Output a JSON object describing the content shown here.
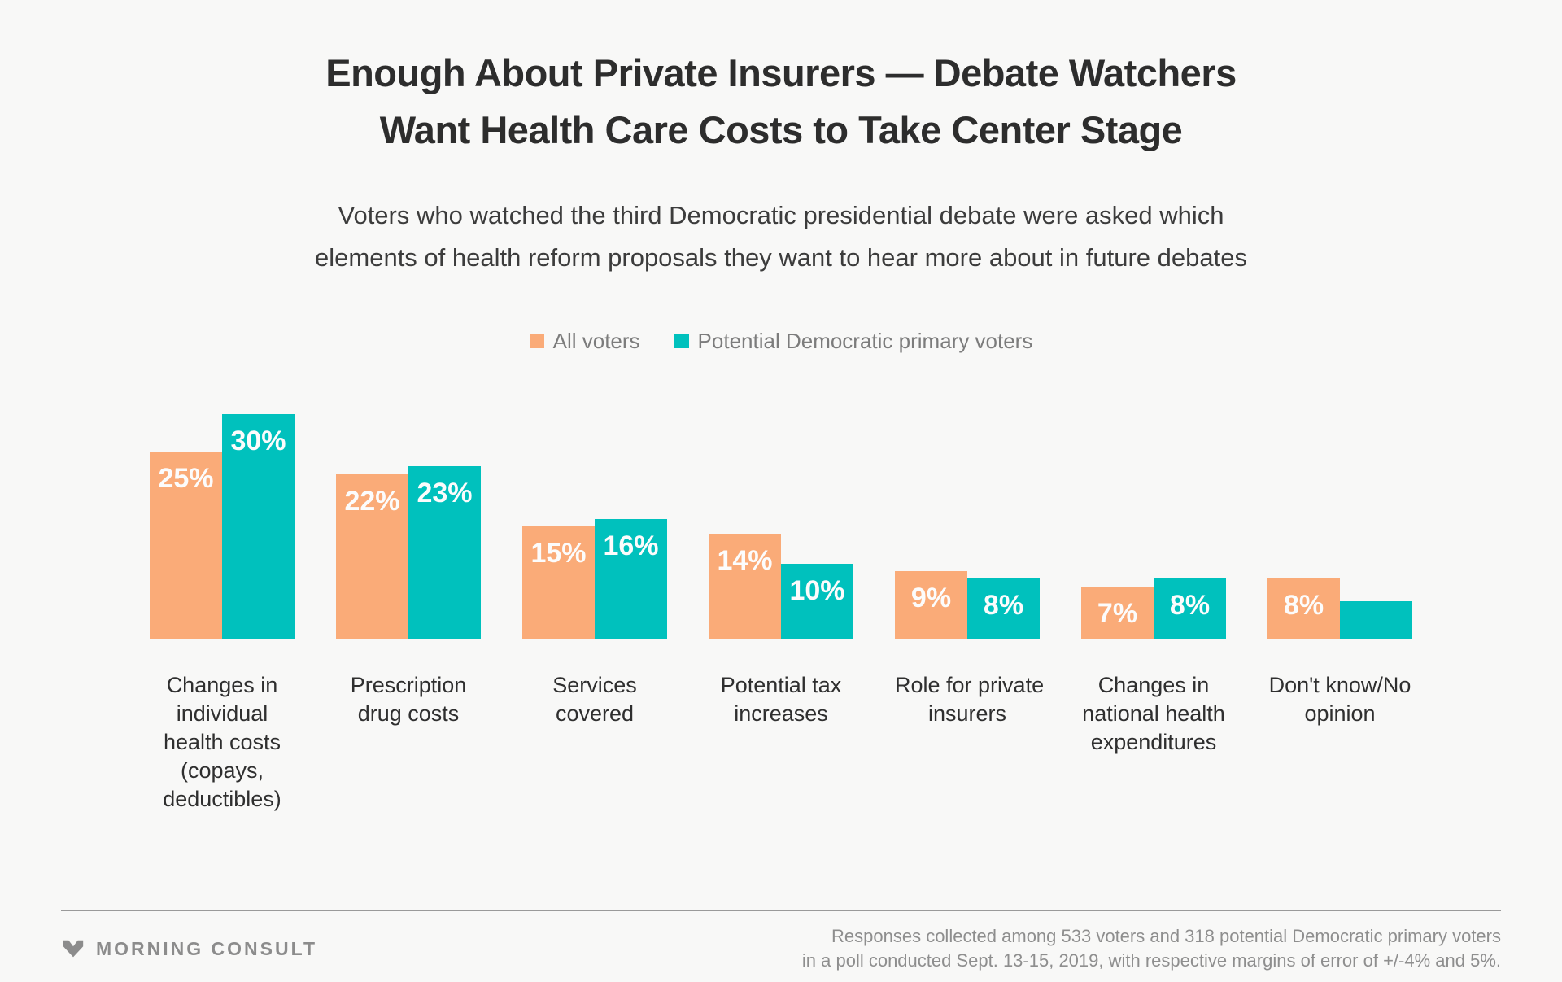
{
  "page": {
    "background": "#f8f8f7"
  },
  "header": {
    "title_line1": "Enough About Private Insurers — Debate Watchers",
    "title_line2": "Want Health Care Costs to Take Center Stage",
    "subtitle_line1": "Voters who watched the third Democratic presidential debate were asked which",
    "subtitle_line2": "elements of health reform proposals they want to hear more about in future debates"
  },
  "legend": {
    "items": [
      {
        "label": "All voters",
        "color": "#faab78"
      },
      {
        "label": "Potential Democratic primary voters",
        "color": "#00c1bd"
      }
    ]
  },
  "chart_data": {
    "type": "bar",
    "title": "Enough About Private Insurers — Debate Watchers Want Health Care Costs to Take Center Stage",
    "subtitle": "Voters who watched the third Democratic presidential debate were asked which elements of health reform proposals they want to hear more about in future debates",
    "xlabel": "",
    "ylabel": "",
    "ylim": [
      0,
      30
    ],
    "grid": false,
    "legend_position": "top-center",
    "value_labels": "inside-top, white; last teal bar unlabeled",
    "categories": [
      "Changes in individual health costs (copays, deductibles)",
      "Prescription drug costs",
      "Services covered",
      "Potential tax increases",
      "Role for private insurers",
      "Changes in national health expenditures",
      "Don't know/No opinion"
    ],
    "categories_lines": [
      [
        "Changes in",
        "individual",
        "health costs",
        "(copays,",
        "deductibles)"
      ],
      [
        "Prescription",
        "drug costs"
      ],
      [
        "Services",
        "covered"
      ],
      [
        "Potential tax",
        "increases"
      ],
      [
        "Role for private",
        "insurers"
      ],
      [
        "Changes in",
        "national health",
        "expenditures"
      ],
      [
        "Don't know/No",
        "opinion"
      ]
    ],
    "series": [
      {
        "name": "All voters",
        "color": "#faab78",
        "values": [
          25,
          22,
          15,
          14,
          9,
          7,
          8
        ],
        "labels": [
          "25%",
          "22%",
          "15%",
          "14%",
          "9%",
          "7%",
          "8%"
        ]
      },
      {
        "name": "Potential Democratic primary voters",
        "color": "#00c1bd",
        "values": [
          30,
          23,
          16,
          10,
          8,
          8,
          5
        ],
        "labels": [
          "30%",
          "23%",
          "16%",
          "10%",
          "8%",
          "8%",
          ""
        ]
      }
    ]
  },
  "footer": {
    "brand": "MORNING CONSULT",
    "source_line1": "Responses collected among 533 voters and 318 potential Democratic primary voters",
    "source_line2": "in a poll conducted Sept. 13-15, 2019, with respective margins of error of +/-4% and 5%."
  }
}
